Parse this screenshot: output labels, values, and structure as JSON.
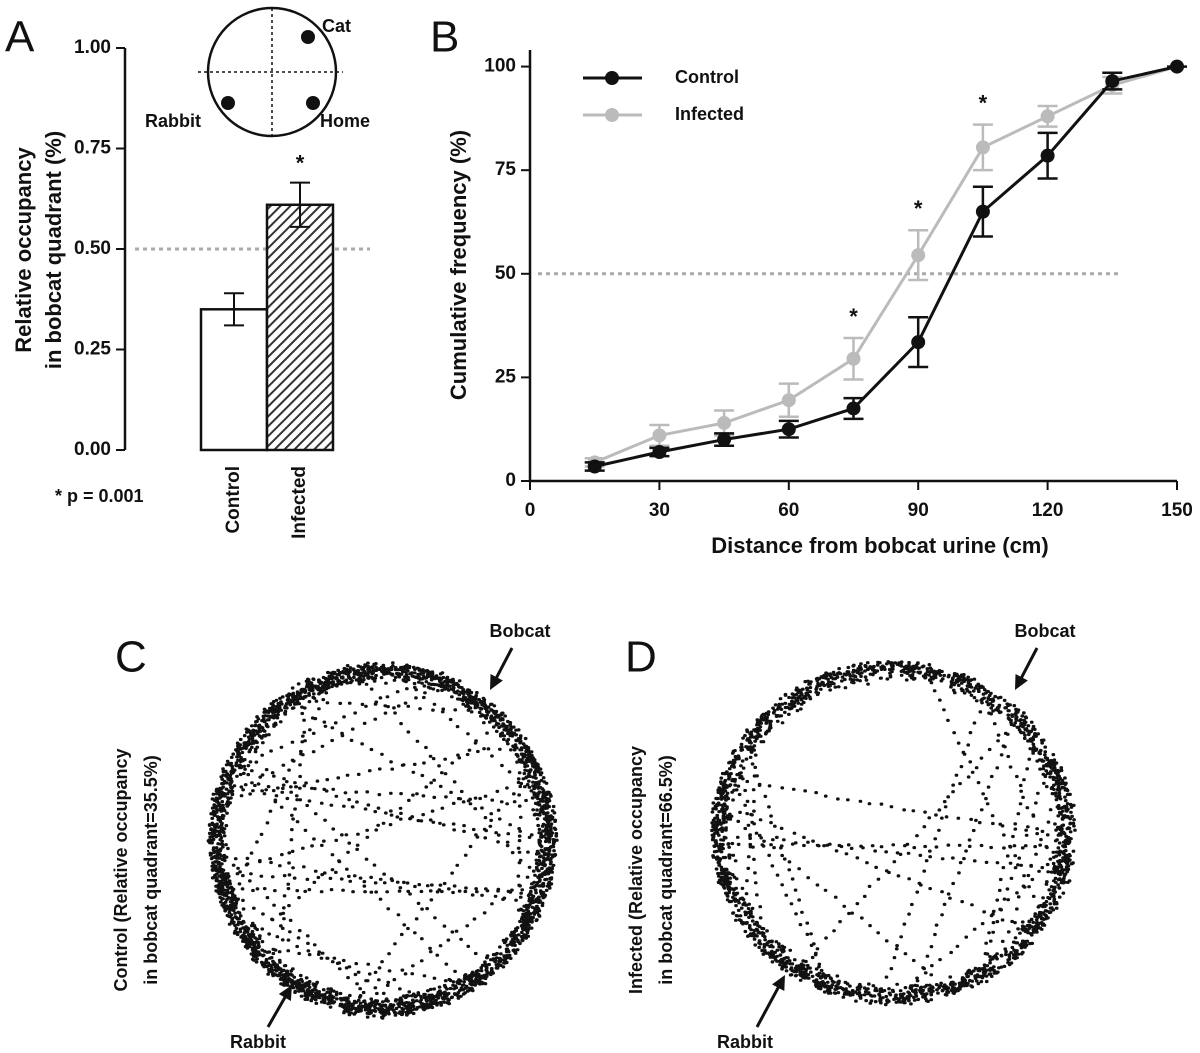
{
  "chart_data": [
    {
      "type": "bar",
      "panel_label": "A",
      "ylabel": [
        "Relative occupancy",
        "in bobcat quadrant (%)"
      ],
      "categories": [
        "Control",
        "Infected"
      ],
      "values": [
        0.35,
        0.61
      ],
      "errors": [
        0.04,
        0.055
      ],
      "colors": [
        "#ffffff",
        "#444444"
      ],
      "hatch": [
        false,
        true
      ],
      "ylim": [
        0,
        1
      ],
      "yticks": [
        {
          "value": 0,
          "label": "0.00"
        },
        {
          "value": 0.25,
          "label": "0.25"
        },
        {
          "value": 0.5,
          "label": "0.50"
        },
        {
          "value": 0.75,
          "label": "0.75"
        },
        {
          "value": 1,
          "label": "1.00"
        }
      ],
      "reference_line": 0.5,
      "annotations": [
        {
          "category": "Infected",
          "text": "*"
        }
      ],
      "note": "* p = 0.001",
      "inset_labels": [
        "Cat",
        "Rabbit",
        "Home"
      ]
    },
    {
      "type": "line",
      "panel_label": "B",
      "xlabel": "Distance from bobcat urine (cm)",
      "ylabel": "Cumulative frequency (%)",
      "x": [
        15,
        30,
        45,
        60,
        75,
        90,
        105,
        120,
        135,
        150
      ],
      "series": [
        {
          "name": "Control",
          "color": "#111111",
          "values": [
            3.5,
            7,
            10,
            12.5,
            17.5,
            33.5,
            65,
            78.5,
            96.5,
            100
          ],
          "errors": [
            1,
            1,
            1.5,
            2,
            2.5,
            6,
            6,
            5.5,
            2,
            0
          ]
        },
        {
          "name": "Infected",
          "color": "#bbbbbb",
          "values": [
            4.5,
            11,
            14,
            19.5,
            29.5,
            54.5,
            80.5,
            88,
            95.5,
            100
          ],
          "errors": [
            1,
            2.5,
            3,
            4,
            5,
            6,
            5.5,
            2.5,
            2,
            0
          ]
        }
      ],
      "xlim": [
        0,
        150
      ],
      "xticks": [
        0,
        30,
        60,
        90,
        120,
        150
      ],
      "ylim": [
        0,
        104
      ],
      "yticks": [
        0,
        25,
        50,
        75,
        100
      ],
      "reference_line": 50,
      "legend": "upper left",
      "annotations": [
        {
          "x": 75,
          "text": "*"
        },
        {
          "x": 90,
          "text": "*"
        },
        {
          "x": 105,
          "text": "*"
        }
      ]
    },
    {
      "type": "trajectory",
      "panel_label": "C",
      "ylabel": [
        "Control (Relative occupancy",
        "in bobcat quadrant=35.5%)"
      ],
      "markers": [
        "Bobcat",
        "Rabbit"
      ]
    },
    {
      "type": "trajectory",
      "panel_label": "D",
      "ylabel": [
        "Infected (Relative occupancy",
        "in bobcat quadrant=66.5%)"
      ],
      "markers": [
        "Bobcat",
        "Rabbit"
      ]
    }
  ]
}
